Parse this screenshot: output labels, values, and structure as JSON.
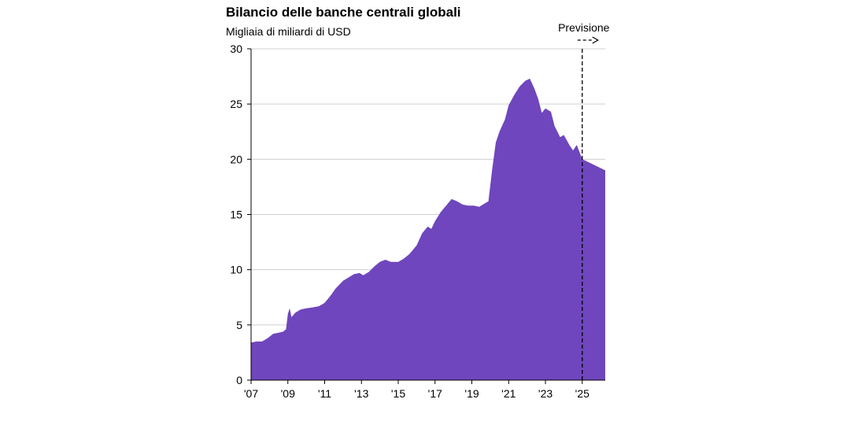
{
  "chart_data": {
    "type": "area",
    "title": "Bilancio delle banche centrali globali",
    "subtitle": "Migliaia di miliardi di USD",
    "xlabel": "",
    "ylabel": "",
    "ylim": [
      0,
      30
    ],
    "yticks": [
      "0",
      "5",
      "10",
      "15",
      "20",
      "25",
      "30"
    ],
    "xlim": [
      2007,
      2026.25
    ],
    "xticks": [
      {
        "label": "'07",
        "year": 2007
      },
      {
        "label": "'09",
        "year": 2009
      },
      {
        "label": "'11",
        "year": 2011
      },
      {
        "label": "'13",
        "year": 2013
      },
      {
        "label": "'15",
        "year": 2015
      },
      {
        "label": "'17",
        "year": 2017
      },
      {
        "label": "'19",
        "year": 2019
      },
      {
        "label": "'21",
        "year": 2021
      },
      {
        "label": "'23",
        "year": 2023
      },
      {
        "label": "'25",
        "year": 2025
      }
    ],
    "grid": "horizontal",
    "color": "#6f46bd",
    "forecast": {
      "label": "Previsione",
      "start_year": 2025
    },
    "series": [
      {
        "points": [
          [
            2007.0,
            3.4
          ],
          [
            2007.3,
            3.5
          ],
          [
            2007.6,
            3.5
          ],
          [
            2007.9,
            3.8
          ],
          [
            2008.2,
            4.2
          ],
          [
            2008.5,
            4.3
          ],
          [
            2008.75,
            4.4
          ],
          [
            2008.9,
            4.6
          ],
          [
            2009.0,
            6.0
          ],
          [
            2009.1,
            6.5
          ],
          [
            2009.2,
            5.7
          ],
          [
            2009.4,
            6.1
          ],
          [
            2009.7,
            6.4
          ],
          [
            2010.0,
            6.5
          ],
          [
            2010.4,
            6.6
          ],
          [
            2010.7,
            6.7
          ],
          [
            2011.0,
            7.0
          ],
          [
            2011.3,
            7.6
          ],
          [
            2011.6,
            8.3
          ],
          [
            2012.0,
            9.0
          ],
          [
            2012.3,
            9.3
          ],
          [
            2012.6,
            9.6
          ],
          [
            2012.9,
            9.7
          ],
          [
            2013.1,
            9.5
          ],
          [
            2013.4,
            9.8
          ],
          [
            2013.7,
            10.3
          ],
          [
            2014.0,
            10.7
          ],
          [
            2014.3,
            10.9
          ],
          [
            2014.6,
            10.7
          ],
          [
            2015.0,
            10.7
          ],
          [
            2015.3,
            11.0
          ],
          [
            2015.6,
            11.4
          ],
          [
            2016.0,
            12.2
          ],
          [
            2016.3,
            13.3
          ],
          [
            2016.6,
            13.9
          ],
          [
            2016.8,
            13.7
          ],
          [
            2017.0,
            14.4
          ],
          [
            2017.3,
            15.2
          ],
          [
            2017.6,
            15.8
          ],
          [
            2017.9,
            16.4
          ],
          [
            2018.2,
            16.2
          ],
          [
            2018.5,
            15.9
          ],
          [
            2018.8,
            15.8
          ],
          [
            2019.1,
            15.8
          ],
          [
            2019.4,
            15.7
          ],
          [
            2019.7,
            16.0
          ],
          [
            2019.9,
            16.2
          ],
          [
            2020.1,
            19.0
          ],
          [
            2020.3,
            21.5
          ],
          [
            2020.5,
            22.5
          ],
          [
            2020.8,
            23.6
          ],
          [
            2021.0,
            24.9
          ],
          [
            2021.3,
            25.8
          ],
          [
            2021.6,
            26.6
          ],
          [
            2021.9,
            27.1
          ],
          [
            2022.15,
            27.3
          ],
          [
            2022.4,
            26.4
          ],
          [
            2022.6,
            25.5
          ],
          [
            2022.8,
            24.2
          ],
          [
            2023.0,
            24.6
          ],
          [
            2023.3,
            24.3
          ],
          [
            2023.5,
            23.0
          ],
          [
            2023.8,
            22.0
          ],
          [
            2024.0,
            22.2
          ],
          [
            2024.3,
            21.3
          ],
          [
            2024.5,
            20.8
          ],
          [
            2024.7,
            21.3
          ],
          [
            2025.0,
            20.0
          ],
          [
            2025.5,
            19.6
          ],
          [
            2026.0,
            19.2
          ],
          [
            2026.25,
            19.0
          ]
        ]
      }
    ]
  }
}
